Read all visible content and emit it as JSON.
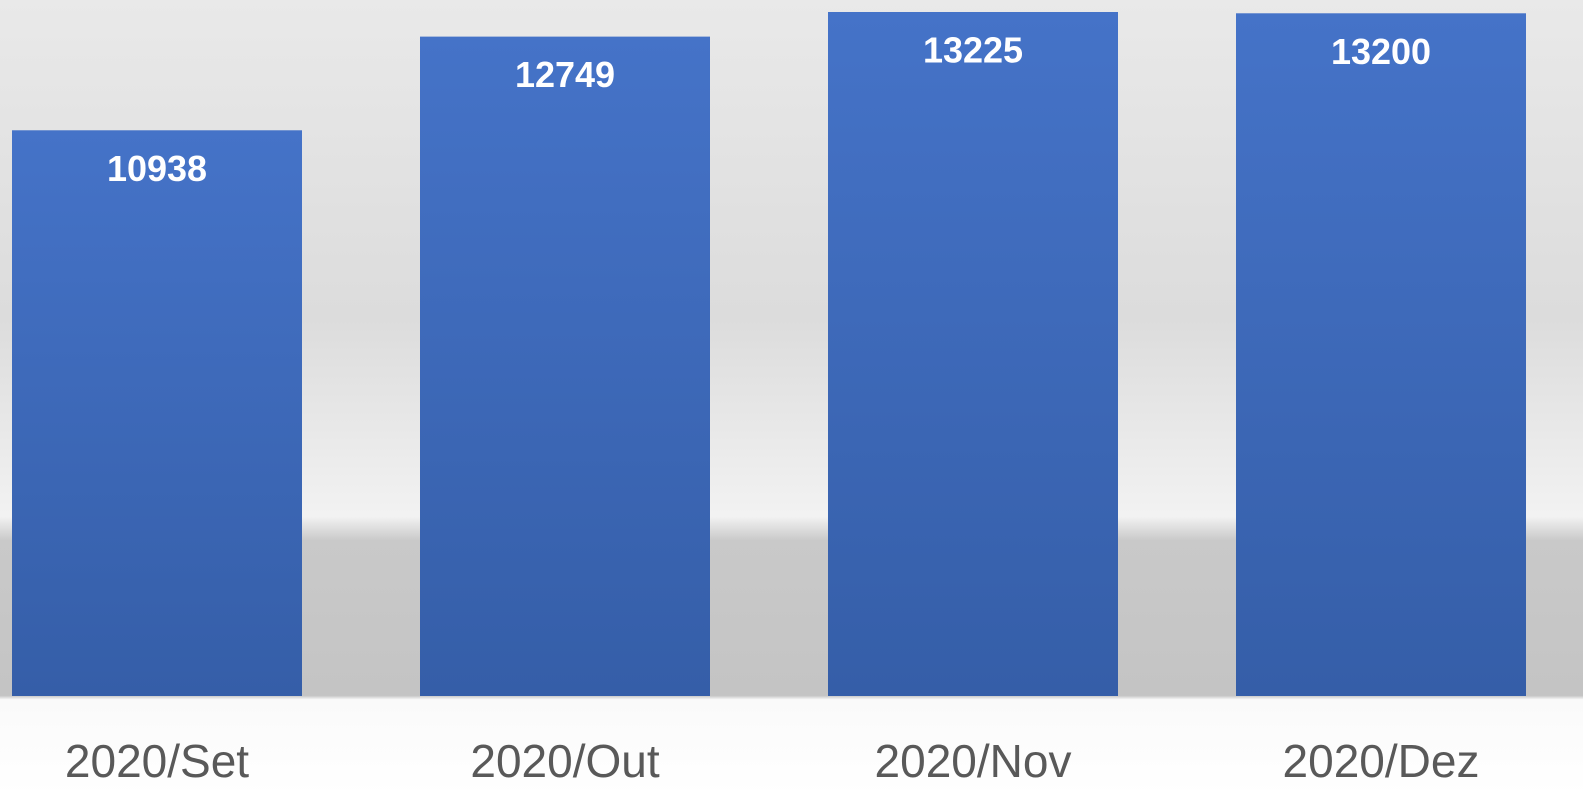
{
  "chart_data": {
    "type": "bar",
    "categories": [
      "2020/Set",
      "2020/Out",
      "2020/Nov",
      "2020/Dez"
    ],
    "values": [
      10938,
      12749,
      13225,
      13200
    ],
    "color": "#4472c4"
  }
}
